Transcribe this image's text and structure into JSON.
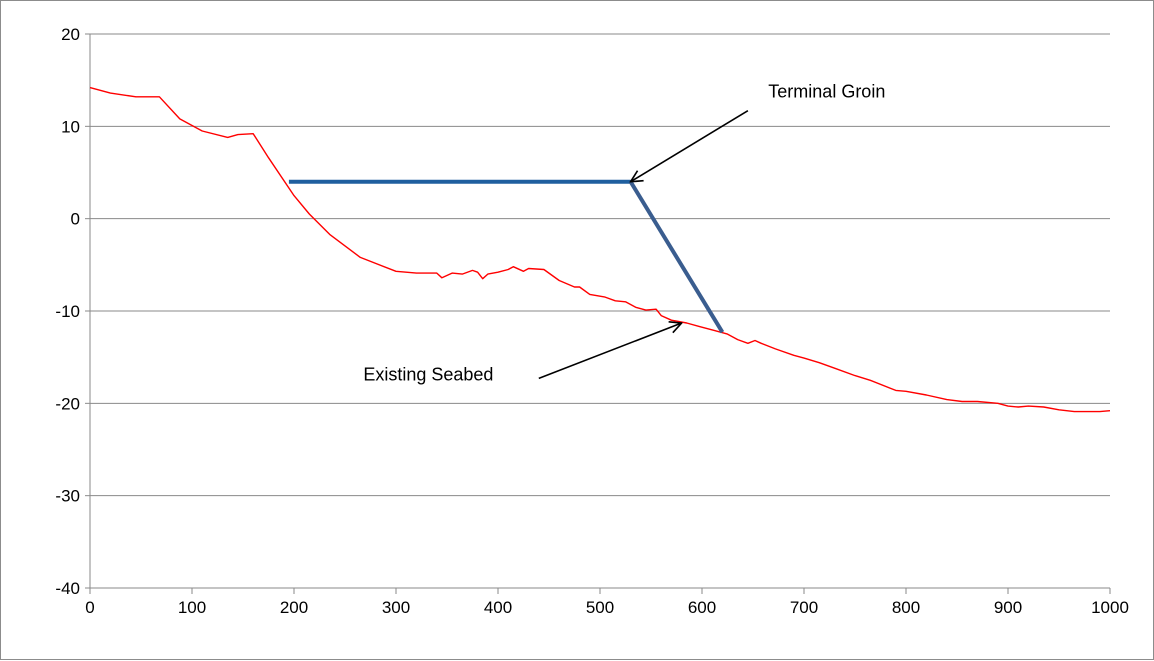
{
  "chart_data": {
    "type": "line",
    "title": "",
    "xlabel": "",
    "ylabel": "",
    "xlim": [
      0,
      1000
    ],
    "ylim": [
      -40,
      20
    ],
    "x_ticks": [
      0,
      100,
      200,
      300,
      400,
      500,
      600,
      700,
      800,
      900,
      1000
    ],
    "y_ticks": [
      20,
      10,
      0,
      -10,
      -20,
      -30,
      -40
    ],
    "grid": "horizontal",
    "legend": "none",
    "series": [
      {
        "color": "#ff0000",
        "x": [
          0,
          20,
          45,
          68,
          88,
          110,
          135,
          145,
          160,
          175,
          200,
          215,
          235,
          265,
          300,
          320,
          340,
          345,
          355,
          365,
          375,
          380,
          385,
          390,
          400,
          410,
          415,
          425,
          430,
          445,
          460,
          475,
          480,
          490,
          505,
          515,
          525,
          535,
          545,
          555,
          560,
          570,
          585,
          598,
          612,
          625,
          635,
          645,
          652,
          658,
          672,
          690,
          700,
          715,
          730,
          750,
          765,
          790,
          800,
          820,
          840,
          855,
          870,
          890,
          900,
          910,
          920,
          935,
          950,
          965,
          975,
          990,
          1000
        ],
        "y": [
          14.2,
          13.6,
          13.2,
          13.2,
          10.8,
          9.5,
          8.8,
          9.1,
          9.2,
          6.6,
          2.5,
          0.5,
          -1.7,
          -4.2,
          -5.7,
          -5.9,
          -5.9,
          -6.4,
          -5.9,
          -6.0,
          -5.6,
          -5.8,
          -6.5,
          -6.0,
          -5.8,
          -5.5,
          -5.2,
          -5.7,
          -5.4,
          -5.5,
          -6.7,
          -7.4,
          -7.4,
          -8.2,
          -8.5,
          -8.9,
          -9.0,
          -9.6,
          -9.9,
          -9.8,
          -10.5,
          -11.0,
          -11.3,
          -11.7,
          -12.1,
          -12.5,
          -13.1,
          -13.5,
          -13.2,
          -13.5,
          -14.1,
          -14.8,
          -15.1,
          -15.6,
          -16.2,
          -17.0,
          -17.5,
          -18.6,
          -18.7,
          -19.1,
          -19.6,
          -19.8,
          -19.8,
          -20.0,
          -20.3,
          -20.4,
          -20.3,
          -20.4,
          -20.7,
          -20.9,
          -20.9,
          -20.9,
          -20.8
        ]
      },
      {
        "color": "#1f5f9f",
        "x": [
          195,
          530
        ],
        "y": [
          4.0,
          4.0
        ]
      },
      {
        "color": "#3a5d8f",
        "x": [
          530,
          620
        ],
        "y": [
          4.0,
          -12.3
        ]
      }
    ],
    "annotations": [
      {
        "text": "Terminal Groin",
        "label_at": [
          665,
          13.1
        ],
        "arrow_from": [
          645,
          11.7
        ],
        "arrow_to": [
          530,
          4.0
        ]
      },
      {
        "text": "Existing Seabed",
        "label_at": [
          268,
          -17.5
        ],
        "arrow_from": [
          440,
          -17.3
        ],
        "arrow_to": [
          580,
          -11.3
        ]
      }
    ]
  }
}
